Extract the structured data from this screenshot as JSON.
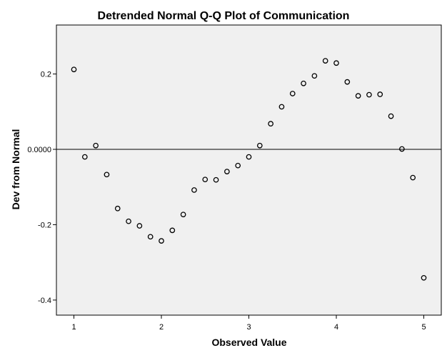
{
  "chart_data": {
    "type": "scatter",
    "title": "Detrended Normal Q-Q Plot of Communication",
    "xlabel": "Observed Value",
    "ylabel": "Dev from Normal",
    "xlim": [
      0.8,
      5.2
    ],
    "ylim": [
      -0.44,
      0.33
    ],
    "x_ticks": [
      1,
      2,
      3,
      4,
      5
    ],
    "x_tick_labels": [
      "1",
      "2",
      "3",
      "4",
      "5"
    ],
    "y_ticks": [
      0.2,
      0.0,
      -0.2,
      -0.4
    ],
    "y_tick_labels": [
      "0.2",
      "0.0000",
      "-0.2",
      "-0.4"
    ],
    "reference_line_y": 0.0,
    "grid": false,
    "background": "#f0f0f0",
    "series": [
      {
        "x": [
          1.0,
          1.125,
          1.25,
          1.375,
          1.5,
          1.625,
          1.75,
          1.875,
          2.0,
          2.125,
          2.25,
          2.375,
          2.5,
          2.625,
          2.75,
          2.875,
          3.0,
          3.125,
          3.25,
          3.375,
          3.5,
          3.625,
          3.75,
          3.875,
          4.0,
          4.125,
          4.25,
          4.375,
          4.5,
          4.625,
          4.75,
          4.875,
          5.0
        ],
        "y": [
          0.212,
          -0.02,
          0.01,
          -0.067,
          -0.157,
          -0.191,
          -0.203,
          -0.232,
          -0.243,
          -0.215,
          -0.173,
          -0.108,
          -0.08,
          -0.081,
          -0.059,
          -0.043,
          -0.02,
          0.01,
          0.068,
          0.113,
          0.148,
          0.175,
          0.195,
          0.235,
          0.229,
          0.179,
          0.142,
          0.145,
          0.146,
          0.088,
          0.001,
          -0.075,
          -0.341
        ]
      }
    ]
  }
}
